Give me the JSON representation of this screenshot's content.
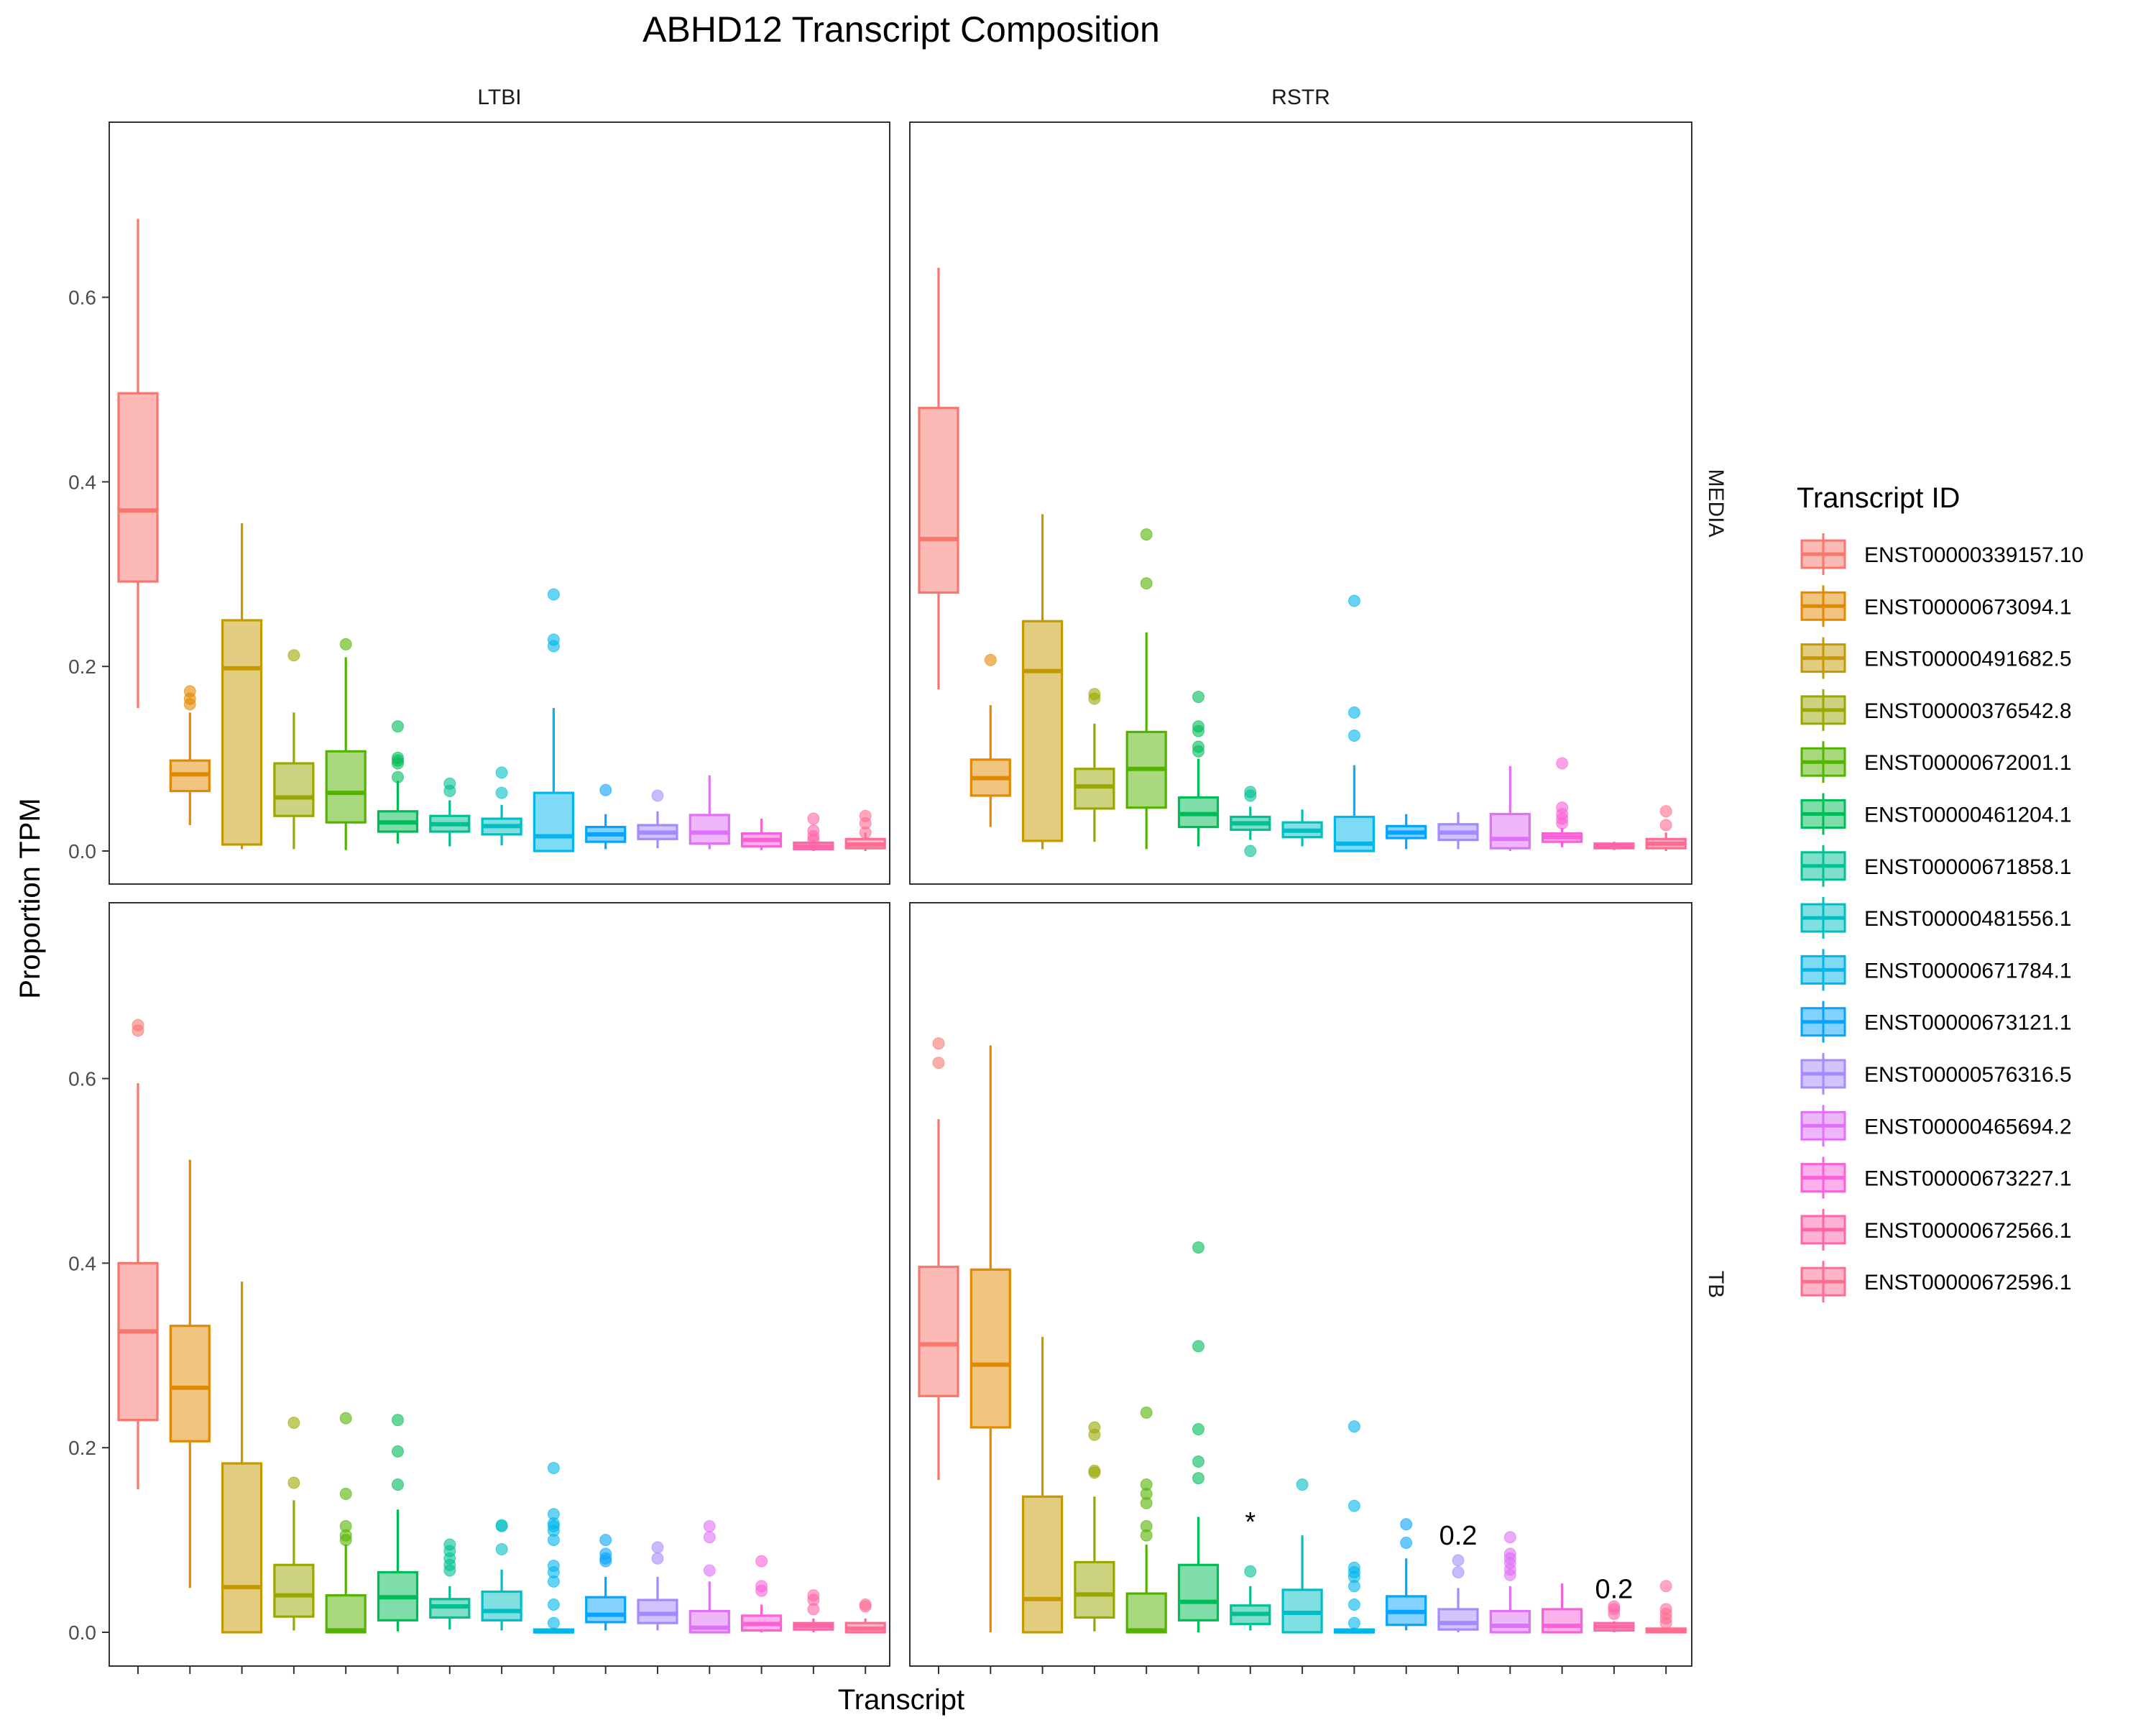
{
  "chart_data": {
    "type": "boxplot",
    "title": "ABHD12 Transcript Composition",
    "xlabel": "Transcript",
    "ylabel": "Proportion TPM",
    "ylim": [
      -0.04,
      0.79
    ],
    "yticks": [
      "0.0",
      "0.2",
      "0.4",
      "0.6"
    ],
    "col_facets": [
      "LTBI",
      "RSTR"
    ],
    "row_facets": [
      "MEDIA",
      "TB"
    ],
    "legend_title": "Transcript ID",
    "legend_position": "right",
    "grid": false,
    "transcripts": [
      {
        "id": "ENST00000339157.10",
        "color": "#F8766D"
      },
      {
        "id": "ENST00000673094.1",
        "color": "#E38900"
      },
      {
        "id": "ENST00000491682.5",
        "color": "#C49A00"
      },
      {
        "id": "ENST00000376542.8",
        "color": "#99A800"
      },
      {
        "id": "ENST00000672001.1",
        "color": "#53B400"
      },
      {
        "id": "ENST00000461204.1",
        "color": "#00BC56"
      },
      {
        "id": "ENST00000671858.1",
        "color": "#00C094"
      },
      {
        "id": "ENST00000481556.1",
        "color": "#00BFC4"
      },
      {
        "id": "ENST00000671784.1",
        "color": "#00B6EB"
      },
      {
        "id": "ENST00000673121.1",
        "color": "#06A4FF"
      },
      {
        "id": "ENST00000576316.5",
        "color": "#A58AFF"
      },
      {
        "id": "ENST00000465694.2",
        "color": "#DF70F8"
      },
      {
        "id": "ENST00000673227.1",
        "color": "#FB61D7"
      },
      {
        "id": "ENST00000672566.1",
        "color": "#FF66A8"
      },
      {
        "id": "ENST00000672596.1",
        "color": "#FF6C91"
      }
    ],
    "panels": [
      {
        "col": "LTBI",
        "row": "MEDIA",
        "boxes": [
          {
            "q1": 0.292,
            "median": 0.369,
            "q3": 0.496,
            "lo": 0.155,
            "hi": 0.685,
            "out": []
          },
          {
            "q1": 0.065,
            "median": 0.083,
            "q3": 0.098,
            "lo": 0.028,
            "hi": 0.15,
            "out": [
              0.159,
              0.165,
              0.173
            ]
          },
          {
            "q1": 0.007,
            "median": 0.198,
            "q3": 0.25,
            "lo": 0.002,
            "hi": 0.355,
            "out": []
          },
          {
            "q1": 0.038,
            "median": 0.058,
            "q3": 0.095,
            "lo": 0.002,
            "hi": 0.15,
            "out": [
              0.212
            ]
          },
          {
            "q1": 0.031,
            "median": 0.063,
            "q3": 0.108,
            "lo": 0.001,
            "hi": 0.21,
            "out": [
              0.224
            ]
          },
          {
            "q1": 0.021,
            "median": 0.031,
            "q3": 0.043,
            "lo": 0.008,
            "hi": 0.076,
            "out": [
              0.095,
              0.101,
              0.098,
              0.135,
              0.08
            ]
          },
          {
            "q1": 0.021,
            "median": 0.029,
            "q3": 0.038,
            "lo": 0.005,
            "hi": 0.055,
            "out": [
              0.065,
              0.073
            ]
          },
          {
            "q1": 0.018,
            "median": 0.027,
            "q3": 0.035,
            "lo": 0.006,
            "hi": 0.05,
            "out": [
              0.063,
              0.085
            ]
          },
          {
            "q1": 0.0,
            "median": 0.016,
            "q3": 0.063,
            "lo": 0.0,
            "hi": 0.155,
            "out": [
              0.222,
              0.229,
              0.278
            ]
          },
          {
            "q1": 0.01,
            "median": 0.018,
            "q3": 0.026,
            "lo": 0.002,
            "hi": 0.04,
            "out": [
              0.066
            ]
          },
          {
            "q1": 0.013,
            "median": 0.02,
            "q3": 0.028,
            "lo": 0.003,
            "hi": 0.043,
            "out": [
              0.06
            ]
          },
          {
            "q1": 0.008,
            "median": 0.02,
            "q3": 0.039,
            "lo": 0.002,
            "hi": 0.082,
            "out": []
          },
          {
            "q1": 0.005,
            "median": 0.012,
            "q3": 0.019,
            "lo": 0.001,
            "hi": 0.035,
            "out": []
          },
          {
            "q1": 0.002,
            "median": 0.005,
            "q3": 0.009,
            "lo": 0.0,
            "hi": 0.012,
            "out": [
              0.012,
              0.016,
              0.022,
              0.035
            ]
          },
          {
            "q1": 0.003,
            "median": 0.007,
            "q3": 0.013,
            "lo": 0.0,
            "hi": 0.02,
            "out": [
              0.02,
              0.03,
              0.038
            ]
          }
        ],
        "annotations": []
      },
      {
        "col": "RSTR",
        "row": "MEDIA",
        "boxes": [
          {
            "q1": 0.28,
            "median": 0.338,
            "q3": 0.48,
            "lo": 0.175,
            "hi": 0.632,
            "out": []
          },
          {
            "q1": 0.06,
            "median": 0.079,
            "q3": 0.099,
            "lo": 0.026,
            "hi": 0.158,
            "out": [
              0.207
            ]
          },
          {
            "q1": 0.011,
            "median": 0.195,
            "q3": 0.249,
            "lo": 0.002,
            "hi": 0.365,
            "out": []
          },
          {
            "q1": 0.046,
            "median": 0.07,
            "q3": 0.089,
            "lo": 0.01,
            "hi": 0.138,
            "out": [
              0.165,
              0.17
            ]
          },
          {
            "q1": 0.047,
            "median": 0.089,
            "q3": 0.129,
            "lo": 0.002,
            "hi": 0.237,
            "out": [
              0.29,
              0.343
            ]
          },
          {
            "q1": 0.026,
            "median": 0.04,
            "q3": 0.058,
            "lo": 0.005,
            "hi": 0.1,
            "out": [
              0.108,
              0.113,
              0.13,
              0.135,
              0.167
            ]
          },
          {
            "q1": 0.023,
            "median": 0.03,
            "q3": 0.037,
            "lo": 0.012,
            "hi": 0.048,
            "out": [
              0.0,
              0.06,
              0.064
            ]
          },
          {
            "q1": 0.015,
            "median": 0.022,
            "q3": 0.031,
            "lo": 0.005,
            "hi": 0.045,
            "out": []
          },
          {
            "q1": 0.0,
            "median": 0.008,
            "q3": 0.037,
            "lo": 0.0,
            "hi": 0.093,
            "out": [
              0.125,
              0.15,
              0.271
            ]
          },
          {
            "q1": 0.014,
            "median": 0.02,
            "q3": 0.027,
            "lo": 0.002,
            "hi": 0.04,
            "out": []
          },
          {
            "q1": 0.012,
            "median": 0.02,
            "q3": 0.029,
            "lo": 0.002,
            "hi": 0.042,
            "out": []
          },
          {
            "q1": 0.003,
            "median": 0.013,
            "q3": 0.04,
            "lo": 0.0,
            "hi": 0.092,
            "out": []
          },
          {
            "q1": 0.01,
            "median": 0.015,
            "q3": 0.019,
            "lo": 0.004,
            "hi": 0.025,
            "out": [
              0.03,
              0.035,
              0.04,
              0.047,
              0.095
            ]
          },
          {
            "q1": 0.003,
            "median": 0.006,
            "q3": 0.008,
            "lo": 0.001,
            "hi": 0.01,
            "out": []
          },
          {
            "q1": 0.003,
            "median": 0.008,
            "q3": 0.013,
            "lo": 0.0,
            "hi": 0.02,
            "out": [
              0.028,
              0.043
            ]
          }
        ],
        "annotations": []
      },
      {
        "col": "LTBI",
        "row": "TB",
        "boxes": [
          {
            "q1": 0.23,
            "median": 0.326,
            "q3": 0.4,
            "lo": 0.155,
            "hi": 0.595,
            "out": [
              0.652,
              0.658
            ]
          },
          {
            "q1": 0.207,
            "median": 0.265,
            "q3": 0.332,
            "lo": 0.048,
            "hi": 0.512,
            "out": []
          },
          {
            "q1": 0.0,
            "median": 0.049,
            "q3": 0.183,
            "lo": 0.0,
            "hi": 0.38,
            "out": []
          },
          {
            "q1": 0.017,
            "median": 0.04,
            "q3": 0.073,
            "lo": 0.002,
            "hi": 0.143,
            "out": [
              0.162,
              0.227
            ]
          },
          {
            "q1": 0.0,
            "median": 0.002,
            "q3": 0.04,
            "lo": 0.0,
            "hi": 0.095,
            "out": [
              0.1,
              0.105,
              0.115,
              0.15,
              0.232
            ]
          },
          {
            "q1": 0.013,
            "median": 0.038,
            "q3": 0.065,
            "lo": 0.001,
            "hi": 0.133,
            "out": [
              0.16,
              0.196,
              0.23
            ]
          },
          {
            "q1": 0.016,
            "median": 0.028,
            "q3": 0.036,
            "lo": 0.003,
            "hi": 0.05,
            "out": [
              0.067,
              0.073,
              0.08,
              0.088,
              0.095
            ]
          },
          {
            "q1": 0.013,
            "median": 0.023,
            "q3": 0.044,
            "lo": 0.002,
            "hi": 0.068,
            "out": [
              0.09,
              0.115,
              0.116
            ]
          },
          {
            "q1": 0.0,
            "median": 0.001,
            "q3": 0.003,
            "lo": 0.0,
            "hi": 0.005,
            "out": [
              0.01,
              0.03,
              0.055,
              0.065,
              0.072,
              0.1,
              0.11,
              0.115,
              0.118,
              0.128,
              0.178
            ]
          },
          {
            "q1": 0.011,
            "median": 0.019,
            "q3": 0.038,
            "lo": 0.002,
            "hi": 0.06,
            "out": [
              0.077,
              0.08,
              0.085,
              0.1
            ]
          },
          {
            "q1": 0.01,
            "median": 0.02,
            "q3": 0.035,
            "lo": 0.002,
            "hi": 0.06,
            "out": [
              0.08,
              0.092
            ]
          },
          {
            "q1": 0.0,
            "median": 0.005,
            "q3": 0.023,
            "lo": 0.0,
            "hi": 0.055,
            "out": [
              0.067,
              0.103,
              0.115
            ]
          },
          {
            "q1": 0.002,
            "median": 0.009,
            "q3": 0.018,
            "lo": 0.0,
            "hi": 0.03,
            "out": [
              0.045,
              0.05,
              0.077
            ]
          },
          {
            "q1": 0.003,
            "median": 0.007,
            "q3": 0.01,
            "lo": 0.0,
            "hi": 0.015,
            "out": [
              0.025,
              0.035,
              0.04
            ]
          },
          {
            "q1": 0.0,
            "median": 0.004,
            "q3": 0.01,
            "lo": 0.0,
            "hi": 0.015,
            "out": [
              0.028,
              0.03
            ]
          }
        ],
        "annotations": []
      },
      {
        "col": "RSTR",
        "row": "TB",
        "boxes": [
          {
            "q1": 0.256,
            "median": 0.312,
            "q3": 0.396,
            "lo": 0.165,
            "hi": 0.556,
            "out": [
              0.617,
              0.638
            ]
          },
          {
            "q1": 0.222,
            "median": 0.29,
            "q3": 0.393,
            "lo": 0.0,
            "hi": 0.636,
            "out": []
          },
          {
            "q1": 0.0,
            "median": 0.036,
            "q3": 0.147,
            "lo": 0.0,
            "hi": 0.32,
            "out": []
          },
          {
            "q1": 0.016,
            "median": 0.041,
            "q3": 0.076,
            "lo": 0.001,
            "hi": 0.147,
            "out": [
              0.173,
              0.175,
              0.214,
              0.222
            ]
          },
          {
            "q1": 0.0,
            "median": 0.002,
            "q3": 0.042,
            "lo": 0.0,
            "hi": 0.095,
            "out": [
              0.105,
              0.115,
              0.14,
              0.15,
              0.16,
              0.238
            ]
          },
          {
            "q1": 0.013,
            "median": 0.033,
            "q3": 0.073,
            "lo": 0.0,
            "hi": 0.125,
            "out": [
              0.167,
              0.185,
              0.22,
              0.31,
              0.417
            ]
          },
          {
            "q1": 0.009,
            "median": 0.02,
            "q3": 0.029,
            "lo": 0.002,
            "hi": 0.05,
            "out": [
              0.066
            ]
          },
          {
            "q1": 0.0,
            "median": 0.021,
            "q3": 0.046,
            "lo": 0.0,
            "hi": 0.105,
            "out": [
              0.16
            ]
          },
          {
            "q1": 0.0,
            "median": 0.001,
            "q3": 0.003,
            "lo": 0.0,
            "hi": 0.005,
            "out": [
              0.01,
              0.03,
              0.05,
              0.06,
              0.065,
              0.07,
              0.137,
              0.223
            ]
          },
          {
            "q1": 0.008,
            "median": 0.022,
            "q3": 0.039,
            "lo": 0.002,
            "hi": 0.08,
            "out": [
              0.097,
              0.117
            ]
          },
          {
            "q1": 0.003,
            "median": 0.01,
            "q3": 0.025,
            "lo": 0.0,
            "hi": 0.048,
            "out": [
              0.065,
              0.078
            ]
          },
          {
            "q1": 0.0,
            "median": 0.007,
            "q3": 0.023,
            "lo": 0.0,
            "hi": 0.05,
            "out": [
              0.062,
              0.068,
              0.075,
              0.08,
              0.085,
              0.103
            ]
          },
          {
            "q1": 0.0,
            "median": 0.007,
            "q3": 0.025,
            "lo": 0.0,
            "hi": 0.053,
            "out": []
          },
          {
            "q1": 0.002,
            "median": 0.006,
            "q3": 0.01,
            "lo": 0.0,
            "hi": 0.012,
            "out": [
              0.02,
              0.025,
              0.028
            ]
          },
          {
            "q1": 0.0,
            "median": 0.002,
            "q3": 0.004,
            "lo": 0.0,
            "hi": 0.005,
            "out": [
              0.01,
              0.015,
              0.02,
              0.025,
              0.05
            ]
          }
        ],
        "annotations": [
          {
            "text": "*",
            "transcript_index": 6,
            "y": 0.11
          },
          {
            "text": "0.2",
            "transcript_index": 10,
            "y": 0.095
          },
          {
            "text": "0.2",
            "transcript_index": 13,
            "y": 0.037
          }
        ]
      }
    ]
  }
}
